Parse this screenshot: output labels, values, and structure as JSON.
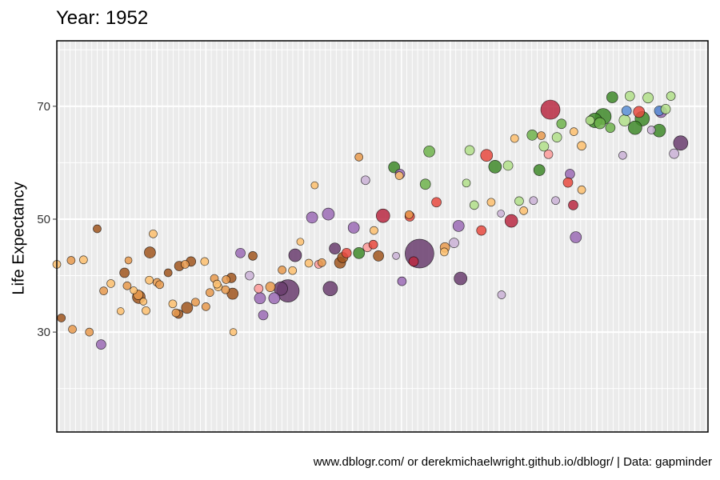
{
  "chart_data": {
    "type": "scatter",
    "title": "Year: 1952",
    "ylabel": "Life Expectancy",
    "xlabel": "",
    "caption": "www.dblogr.com/ or derekmichaelwright.github.io/dblogr/ | Data: gapminder",
    "yticks": [
      30,
      50,
      70
    ],
    "ylim": [
      12.3,
      81.6
    ],
    "xlim": [
      0,
      1
    ],
    "grid": true,
    "legend": "none",
    "colors": {
      "orange_light": "#FDBF6F",
      "orange": "#E89A4E",
      "brown": "#A0561E",
      "purple_light": "#CAB2D6",
      "purple_mid": "#9B6BB5",
      "purple_dark": "#6A3D6E",
      "red_light": "#FB9A99",
      "red": "#E84A3F",
      "crimson": "#B82942",
      "green_light": "#B2DF8A",
      "green": "#6FB34C",
      "green_dark": "#3F8A2A",
      "blue": "#5B8FD6"
    },
    "points": [
      {
        "x": 0.0,
        "y": 42.0,
        "r": 5,
        "c": "orange_light"
      },
      {
        "x": 0.022,
        "y": 42.7,
        "r": 5,
        "c": "orange"
      },
      {
        "x": 0.041,
        "y": 42.8,
        "r": 5,
        "c": "orange_light"
      },
      {
        "x": 0.062,
        "y": 48.3,
        "r": 5,
        "c": "brown"
      },
      {
        "x": 0.072,
        "y": 37.3,
        "r": 5,
        "c": "orange"
      },
      {
        "x": 0.083,
        "y": 38.6,
        "r": 5,
        "c": "orange_light"
      },
      {
        "x": 0.098,
        "y": 33.7,
        "r": 4.5,
        "c": "orange_light"
      },
      {
        "x": 0.11,
        "y": 42.7,
        "r": 4.5,
        "c": "orange"
      },
      {
        "x": 0.007,
        "y": 32.5,
        "r": 5,
        "c": "brown"
      },
      {
        "x": 0.024,
        "y": 30.5,
        "r": 5,
        "c": "orange"
      },
      {
        "x": 0.05,
        "y": 30.0,
        "r": 5,
        "c": "orange"
      },
      {
        "x": 0.068,
        "y": 27.8,
        "r": 6,
        "c": "purple_mid"
      },
      {
        "x": 0.104,
        "y": 40.5,
        "r": 6,
        "c": "brown"
      },
      {
        "x": 0.118,
        "y": 37.4,
        "r": 4.5,
        "c": "orange_light"
      },
      {
        "x": 0.125,
        "y": 36.6,
        "r": 6,
        "c": "orange"
      },
      {
        "x": 0.108,
        "y": 38.2,
        "r": 5,
        "c": "orange"
      },
      {
        "x": 0.142,
        "y": 39.2,
        "r": 5,
        "c": "orange_light"
      },
      {
        "x": 0.154,
        "y": 38.8,
        "r": 5,
        "c": "orange"
      },
      {
        "x": 0.148,
        "y": 47.4,
        "r": 5,
        "c": "orange_light"
      },
      {
        "x": 0.143,
        "y": 44.1,
        "r": 7,
        "c": "brown"
      },
      {
        "x": 0.158,
        "y": 38.4,
        "r": 5,
        "c": "orange"
      },
      {
        "x": 0.171,
        "y": 40.5,
        "r": 5,
        "c": "brown"
      },
      {
        "x": 0.126,
        "y": 36.2,
        "r": 8,
        "c": "brown"
      },
      {
        "x": 0.188,
        "y": 41.7,
        "r": 6,
        "c": "brown"
      },
      {
        "x": 0.197,
        "y": 42.0,
        "r": 5,
        "c": "orange"
      },
      {
        "x": 0.206,
        "y": 42.5,
        "r": 6,
        "c": "brown"
      },
      {
        "x": 0.133,
        "y": 35.4,
        "r": 4.5,
        "c": "orange_light"
      },
      {
        "x": 0.137,
        "y": 33.8,
        "r": 5,
        "c": "orange_light"
      },
      {
        "x": 0.178,
        "y": 35.0,
        "r": 5,
        "c": "orange_light"
      },
      {
        "x": 0.2,
        "y": 34.3,
        "r": 7,
        "c": "brown"
      },
      {
        "x": 0.187,
        "y": 33.2,
        "r": 5.5,
        "c": "brown"
      },
      {
        "x": 0.183,
        "y": 33.4,
        "r": 5,
        "c": "orange"
      },
      {
        "x": 0.213,
        "y": 35.3,
        "r": 5,
        "c": "orange"
      },
      {
        "x": 0.229,
        "y": 34.5,
        "r": 5,
        "c": "orange"
      },
      {
        "x": 0.227,
        "y": 42.5,
        "r": 5,
        "c": "orange_light"
      },
      {
        "x": 0.242,
        "y": 39.5,
        "r": 5,
        "c": "orange"
      },
      {
        "x": 0.26,
        "y": 39.3,
        "r": 5,
        "c": "orange"
      },
      {
        "x": 0.268,
        "y": 39.6,
        "r": 6,
        "c": "brown"
      },
      {
        "x": 0.248,
        "y": 38.0,
        "r": 5,
        "c": "orange_light"
      },
      {
        "x": 0.259,
        "y": 37.5,
        "r": 5,
        "c": "orange"
      },
      {
        "x": 0.235,
        "y": 37.0,
        "r": 5,
        "c": "orange"
      },
      {
        "x": 0.27,
        "y": 36.8,
        "r": 7,
        "c": "brown"
      },
      {
        "x": 0.271,
        "y": 30.0,
        "r": 4.5,
        "c": "orange_light"
      },
      {
        "x": 0.246,
        "y": 38.5,
        "r": 5,
        "c": "orange_light"
      },
      {
        "x": 0.296,
        "y": 40.0,
        "r": 5.5,
        "c": "purple_light"
      },
      {
        "x": 0.282,
        "y": 44.0,
        "r": 6,
        "c": "purple_mid"
      },
      {
        "x": 0.301,
        "y": 43.5,
        "r": 5.5,
        "c": "brown"
      },
      {
        "x": 0.31,
        "y": 37.7,
        "r": 5.5,
        "c": "red_light"
      },
      {
        "x": 0.312,
        "y": 36.0,
        "r": 7,
        "c": "purple_mid"
      },
      {
        "x": 0.328,
        "y": 38.0,
        "r": 6,
        "c": "orange"
      },
      {
        "x": 0.334,
        "y": 36.0,
        "r": 7,
        "c": "purple_mid"
      },
      {
        "x": 0.344,
        "y": 37.7,
        "r": 8.5,
        "c": "purple_dark"
      },
      {
        "x": 0.355,
        "y": 37.3,
        "r": 14,
        "c": "purple_dark"
      },
      {
        "x": 0.317,
        "y": 33.0,
        "r": 6,
        "c": "purple_mid"
      },
      {
        "x": 0.346,
        "y": 41.0,
        "r": 5,
        "c": "orange"
      },
      {
        "x": 0.362,
        "y": 40.9,
        "r": 5,
        "c": "orange_light"
      },
      {
        "x": 0.366,
        "y": 43.6,
        "r": 8,
        "c": "purple_dark"
      },
      {
        "x": 0.374,
        "y": 46.0,
        "r": 4.5,
        "c": "orange_light"
      },
      {
        "x": 0.392,
        "y": 50.3,
        "r": 7,
        "c": "purple_mid"
      },
      {
        "x": 0.396,
        "y": 56.0,
        "r": 4.5,
        "c": "orange_light"
      },
      {
        "x": 0.387,
        "y": 42.2,
        "r": 5,
        "c": "orange_light"
      },
      {
        "x": 0.402,
        "y": 42.0,
        "r": 5,
        "c": "red_light"
      },
      {
        "x": 0.407,
        "y": 42.3,
        "r": 5,
        "c": "orange"
      },
      {
        "x": 0.42,
        "y": 37.7,
        "r": 9,
        "c": "purple_dark"
      },
      {
        "x": 0.417,
        "y": 50.9,
        "r": 7.5,
        "c": "purple_mid"
      },
      {
        "x": 0.427,
        "y": 44.8,
        "r": 7,
        "c": "purple_dark"
      },
      {
        "x": 0.439,
        "y": 43.2,
        "r": 6.5,
        "c": "brown"
      },
      {
        "x": 0.445,
        "y": 44.0,
        "r": 6,
        "c": "red"
      },
      {
        "x": 0.456,
        "y": 48.5,
        "r": 7,
        "c": "purple_mid"
      },
      {
        "x": 0.435,
        "y": 42.3,
        "r": 7,
        "c": "brown"
      },
      {
        "x": 0.464,
        "y": 44.0,
        "r": 7,
        "c": "green_dark"
      },
      {
        "x": 0.477,
        "y": 45.0,
        "r": 5.5,
        "c": "red_light"
      },
      {
        "x": 0.486,
        "y": 45.5,
        "r": 5.5,
        "c": "red"
      },
      {
        "x": 0.474,
        "y": 56.9,
        "r": 5.5,
        "c": "purple_light"
      },
      {
        "x": 0.487,
        "y": 48.0,
        "r": 5,
        "c": "orange_light"
      },
      {
        "x": 0.464,
        "y": 61.0,
        "r": 5,
        "c": "orange"
      },
      {
        "x": 0.501,
        "y": 50.6,
        "r": 8.5,
        "c": "crimson"
      },
      {
        "x": 0.494,
        "y": 43.5,
        "r": 6.5,
        "c": "brown"
      },
      {
        "x": 0.521,
        "y": 43.5,
        "r": 4.5,
        "c": "purple_light"
      },
      {
        "x": 0.527,
        "y": 58.0,
        "r": 6,
        "c": "purple_mid"
      },
      {
        "x": 0.526,
        "y": 57.7,
        "r": 5,
        "c": "orange_light"
      },
      {
        "x": 0.518,
        "y": 59.2,
        "r": 7,
        "c": "green_dark"
      },
      {
        "x": 0.53,
        "y": 39.0,
        "r": 5.5,
        "c": "purple_mid"
      },
      {
        "x": 0.541,
        "y": 50.8,
        "r": 5,
        "c": "orange"
      },
      {
        "x": 0.557,
        "y": 43.9,
        "r": 18,
        "c": "purple_dark"
      },
      {
        "x": 0.548,
        "y": 42.5,
        "r": 6,
        "c": "crimson"
      },
      {
        "x": 0.566,
        "y": 56.2,
        "r": 6.5,
        "c": "green"
      },
      {
        "x": 0.572,
        "y": 62.0,
        "r": 7,
        "c": "green"
      },
      {
        "x": 0.583,
        "y": 53.0,
        "r": 6,
        "c": "red"
      },
      {
        "x": 0.542,
        "y": 50.5,
        "r": 6,
        "c": "red"
      },
      {
        "x": 0.595,
        "y": 44.2,
        "r": 5,
        "c": "orange_light"
      },
      {
        "x": 0.596,
        "y": 45.0,
        "r": 6,
        "c": "orange"
      },
      {
        "x": 0.61,
        "y": 45.8,
        "r": 6,
        "c": "purple_light"
      },
      {
        "x": 0.617,
        "y": 48.8,
        "r": 7,
        "c": "purple_mid"
      },
      {
        "x": 0.62,
        "y": 39.5,
        "r": 8,
        "c": "purple_dark"
      },
      {
        "x": 0.629,
        "y": 56.4,
        "r": 5,
        "c": "green_light"
      },
      {
        "x": 0.634,
        "y": 62.2,
        "r": 6,
        "c": "green_light"
      },
      {
        "x": 0.641,
        "y": 52.5,
        "r": 5.5,
        "c": "green_light"
      },
      {
        "x": 0.652,
        "y": 48.0,
        "r": 6,
        "c": "red"
      },
      {
        "x": 0.66,
        "y": 61.3,
        "r": 7.5,
        "c": "red"
      },
      {
        "x": 0.667,
        "y": 53.0,
        "r": 5,
        "c": "orange_light"
      },
      {
        "x": 0.673,
        "y": 59.3,
        "r": 8,
        "c": "green_dark"
      },
      {
        "x": 0.682,
        "y": 51.0,
        "r": 4.5,
        "c": "purple_light"
      },
      {
        "x": 0.683,
        "y": 36.6,
        "r": 5,
        "c": "purple_light"
      },
      {
        "x": 0.693,
        "y": 59.5,
        "r": 6,
        "c": "green_light"
      },
      {
        "x": 0.698,
        "y": 49.7,
        "r": 8,
        "c": "crimson"
      },
      {
        "x": 0.71,
        "y": 53.2,
        "r": 5.5,
        "c": "green_light"
      },
      {
        "x": 0.717,
        "y": 51.5,
        "r": 5,
        "c": "orange_light"
      },
      {
        "x": 0.703,
        "y": 64.3,
        "r": 5,
        "c": "orange_light"
      },
      {
        "x": 0.73,
        "y": 64.9,
        "r": 6.5,
        "c": "green"
      },
      {
        "x": 0.732,
        "y": 53.3,
        "r": 5,
        "c": "purple_light"
      },
      {
        "x": 0.741,
        "y": 58.7,
        "r": 7,
        "c": "green_dark"
      },
      {
        "x": 0.748,
        "y": 62.9,
        "r": 6,
        "c": "green_light"
      },
      {
        "x": 0.744,
        "y": 64.8,
        "r": 5,
        "c": "orange"
      },
      {
        "x": 0.755,
        "y": 61.5,
        "r": 5.5,
        "c": "red_light"
      },
      {
        "x": 0.758,
        "y": 69.4,
        "r": 12,
        "c": "crimson"
      },
      {
        "x": 0.768,
        "y": 64.5,
        "r": 6,
        "c": "green_light"
      },
      {
        "x": 0.775,
        "y": 66.9,
        "r": 6,
        "c": "green"
      },
      {
        "x": 0.766,
        "y": 53.3,
        "r": 5,
        "c": "purple_light"
      },
      {
        "x": 0.788,
        "y": 58.0,
        "r": 6,
        "c": "purple_mid"
      },
      {
        "x": 0.785,
        "y": 56.5,
        "r": 6,
        "c": "red"
      },
      {
        "x": 0.797,
        "y": 46.8,
        "r": 7,
        "c": "purple_mid"
      },
      {
        "x": 0.794,
        "y": 65.5,
        "r": 5,
        "c": "orange_light"
      },
      {
        "x": 0.793,
        "y": 52.5,
        "r": 6,
        "c": "crimson"
      },
      {
        "x": 0.806,
        "y": 55.2,
        "r": 5,
        "c": "orange_light"
      },
      {
        "x": 0.806,
        "y": 63.0,
        "r": 5.5,
        "c": "orange_light"
      },
      {
        "x": 0.819,
        "y": 67.5,
        "r": 5.5,
        "c": "green_light"
      },
      {
        "x": 0.826,
        "y": 67.5,
        "r": 9,
        "c": "green_dark"
      },
      {
        "x": 0.839,
        "y": 68.2,
        "r": 10,
        "c": "green_dark"
      },
      {
        "x": 0.834,
        "y": 67.0,
        "r": 7,
        "c": "green"
      },
      {
        "x": 0.85,
        "y": 66.2,
        "r": 6,
        "c": "green"
      },
      {
        "x": 0.853,
        "y": 71.6,
        "r": 7,
        "c": "green_dark"
      },
      {
        "x": 0.872,
        "y": 67.5,
        "r": 7,
        "c": "green_light"
      },
      {
        "x": 0.88,
        "y": 71.8,
        "r": 6,
        "c": "green_light"
      },
      {
        "x": 0.875,
        "y": 69.2,
        "r": 6,
        "c": "blue"
      },
      {
        "x": 0.869,
        "y": 61.3,
        "r": 5,
        "c": "purple_light"
      },
      {
        "x": 0.888,
        "y": 66.2,
        "r": 8.5,
        "c": "green_dark"
      },
      {
        "x": 0.899,
        "y": 67.8,
        "r": 9,
        "c": "green_dark"
      },
      {
        "x": 0.894,
        "y": 69.0,
        "r": 7,
        "c": "red"
      },
      {
        "x": 0.908,
        "y": 71.5,
        "r": 6.5,
        "c": "green_light"
      },
      {
        "x": 0.913,
        "y": 65.8,
        "r": 5,
        "c": "purple_light"
      },
      {
        "x": 0.925,
        "y": 65.7,
        "r": 8,
        "c": "green_dark"
      },
      {
        "x": 0.925,
        "y": 69.2,
        "r": 6,
        "c": "blue"
      },
      {
        "x": 0.935,
        "y": 69.5,
        "r": 6,
        "c": "green_light"
      },
      {
        "x": 0.943,
        "y": 71.8,
        "r": 5.5,
        "c": "green_light"
      },
      {
        "x": 0.948,
        "y": 61.6,
        "r": 6,
        "c": "purple_light"
      },
      {
        "x": 0.958,
        "y": 63.5,
        "r": 9,
        "c": "purple_dark"
      },
      {
        "x": 0.928,
        "y": 69.0,
        "r": 7,
        "c": "purple_mid"
      }
    ]
  }
}
